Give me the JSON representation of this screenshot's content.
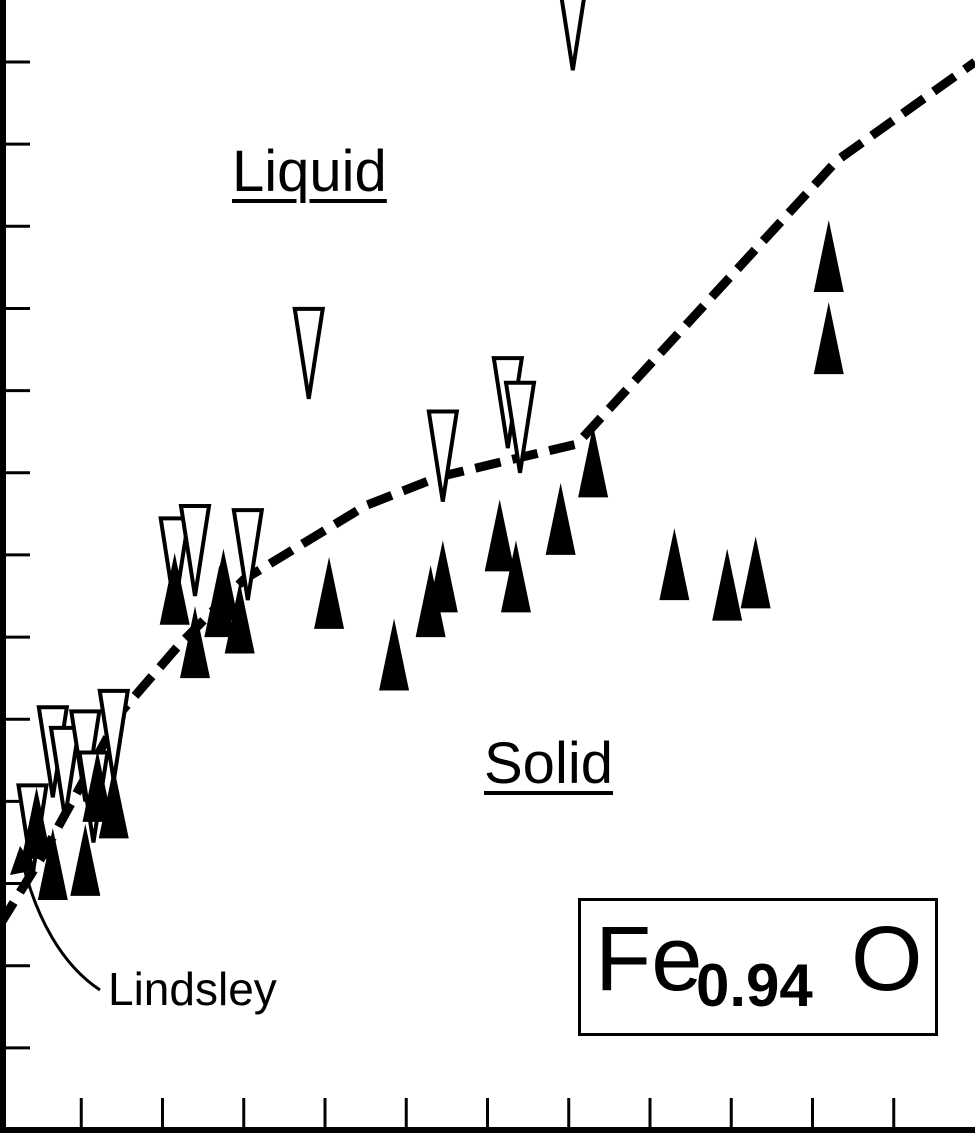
{
  "chart_data": {
    "type": "scatter",
    "title": "",
    "xlabel": "",
    "ylabel": "",
    "xlim": [
      0,
      12
    ],
    "ylim": [
      0,
      13
    ],
    "grid": false,
    "series": [
      {
        "name": "",
        "marker": "open-down-triangle",
        "color": "#ffffff",
        "x": [
          0.4,
          0.65,
          0.8,
          1.05,
          1.15,
          1.4,
          2.15,
          2.4,
          3.05,
          3.8,
          5.45,
          6.25,
          6.4,
          7.05
        ],
        "y": [
          3.1,
          4.05,
          3.8,
          4.0,
          3.5,
          4.25,
          6.35,
          6.5,
          6.45,
          8.9,
          7.65,
          8.3,
          8.0,
          12.9
        ]
      },
      {
        "name": "",
        "marker": "filled-up-triangle",
        "color": "#000000",
        "x": [
          0.45,
          0.65,
          1.05,
          1.2,
          1.4,
          2.15,
          2.4,
          2.7,
          2.75,
          2.95,
          4.05,
          4.85,
          5.3,
          5.45,
          6.15,
          6.35,
          6.9,
          7.3,
          8.3,
          8.95,
          9.3,
          10.2,
          10.2
        ],
        "y": [
          3.3,
          2.8,
          2.85,
          3.75,
          3.55,
          6.15,
          5.5,
          6.0,
          6.2,
          5.8,
          6.1,
          5.35,
          6.0,
          6.3,
          6.8,
          6.3,
          7.0,
          7.7,
          6.45,
          6.2,
          6.35,
          9.2,
          10.2
        ]
      }
    ],
    "boundary": {
      "style": "dashed",
      "x": [
        0.0,
        0.5,
        1.5,
        2.2,
        3.0,
        4.5,
        5.4,
        7.1,
        10.3,
        12.0
      ],
      "y": [
        2.5,
        3.3,
        5.1,
        5.9,
        6.7,
        7.6,
        7.95,
        8.35,
        11.8,
        13.0
      ]
    },
    "annotations": {
      "liquid": "Liquid",
      "solid": "Solid",
      "lindsley": "Lindsley",
      "formula_base": "Fe",
      "formula_sub": "0.94",
      "formula_tail": "O"
    }
  }
}
